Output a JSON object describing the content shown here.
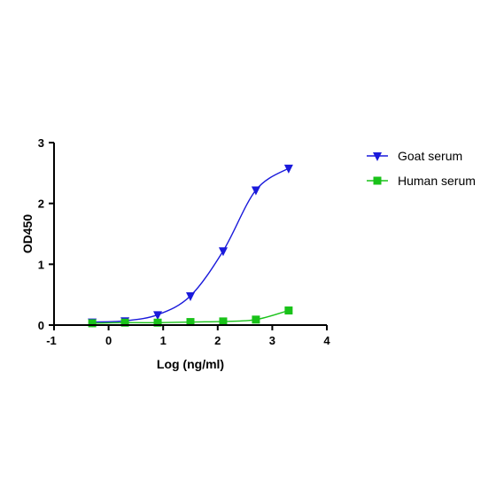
{
  "chart_data": {
    "type": "scatter",
    "title": "",
    "xlabel": "Log (ng/ml)",
    "ylabel": "OD450",
    "xlim": [
      -1,
      4
    ],
    "ylim": [
      0,
      3
    ],
    "xticks": [
      "-1",
      "0",
      "1",
      "2",
      "3",
      "4"
    ],
    "yticks": [
      "0",
      "1",
      "2",
      "3"
    ],
    "grid": false,
    "legend_position": "top-right",
    "series": [
      {
        "name": "Goat serum",
        "color": "#1a1adb",
        "marker": "triangle-down",
        "fit": "sigmoidal",
        "x": [
          -0.3,
          0.3,
          0.9,
          1.5,
          2.1,
          2.7,
          3.3
        ],
        "y": [
          0.05,
          0.07,
          0.17,
          0.48,
          1.22,
          2.22,
          2.58
        ]
      },
      {
        "name": "Human serum",
        "color": "#19c219",
        "marker": "square",
        "fit": "sigmoidal",
        "x": [
          -0.3,
          0.3,
          0.9,
          1.5,
          2.1,
          2.7,
          3.3
        ],
        "y": [
          0.03,
          0.04,
          0.04,
          0.05,
          0.06,
          0.09,
          0.24
        ]
      }
    ]
  }
}
